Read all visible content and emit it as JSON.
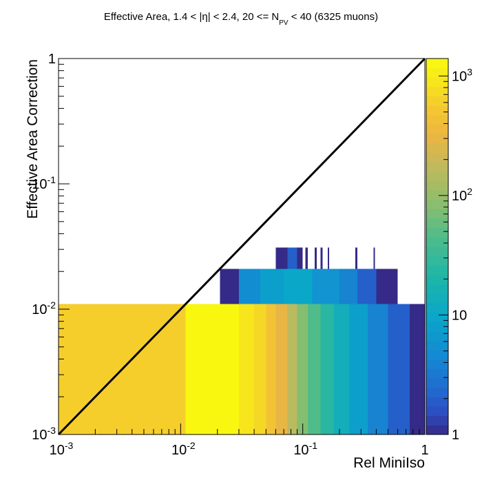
{
  "chart_data": {
    "type": "heatmap",
    "title_main": "Effective Area, 1.4 < |η| < 2.4, 20 <= N",
    "title_sub": "PV",
    "title_rest": " < 40 (6325 muons)",
    "xlabel": "Rel MiniIso",
    "ylabel": "Effective Area Correction",
    "xscale": "log",
    "yscale": "log",
    "xlim": [
      0.001,
      1
    ],
    "ylim": [
      0.001,
      1
    ],
    "x_ticks": [
      {
        "base": "10",
        "exp": "-3"
      },
      {
        "base": "10",
        "exp": "-2"
      },
      {
        "base": "10",
        "exp": "-1"
      },
      {
        "base": "1",
        "exp": ""
      }
    ],
    "y_ticks": [
      {
        "base": "10",
        "exp": "-3"
      },
      {
        "base": "10",
        "exp": "-2"
      },
      {
        "base": "10",
        "exp": "-1"
      },
      {
        "base": "1",
        "exp": ""
      }
    ],
    "colorbar": {
      "scale": "log",
      "range": [
        1,
        1400
      ],
      "ticks": [
        {
          "base": "1",
          "exp": ""
        },
        {
          "base": "10",
          "exp": ""
        },
        {
          "base": "10",
          "exp": "2"
        },
        {
          "base": "10",
          "exp": "3"
        }
      ]
    },
    "diagonal_line": {
      "x": [
        0.001,
        1
      ],
      "y": [
        0.001,
        1
      ]
    },
    "cells": [
      {
        "x0": 0.001,
        "x1": 0.011,
        "y0": 0.001,
        "y1": 0.011,
        "count": 600
      },
      {
        "x0": 0.011,
        "x1": 0.03,
        "y0": 0.001,
        "y1": 0.011,
        "count": 1300
      },
      {
        "x0": 0.03,
        "x1": 0.04,
        "y0": 0.001,
        "y1": 0.011,
        "count": 900
      },
      {
        "x0": 0.04,
        "x1": 0.05,
        "y0": 0.001,
        "y1": 0.011,
        "count": 700
      },
      {
        "x0": 0.05,
        "x1": 0.06,
        "y0": 0.001,
        "y1": 0.011,
        "count": 480
      },
      {
        "x0": 0.06,
        "x1": 0.075,
        "y0": 0.001,
        "y1": 0.011,
        "count": 300
      },
      {
        "x0": 0.075,
        "x1": 0.09,
        "y0": 0.001,
        "y1": 0.011,
        "count": 160
      },
      {
        "x0": 0.09,
        "x1": 0.11,
        "y0": 0.001,
        "y1": 0.011,
        "count": 80
      },
      {
        "x0": 0.11,
        "x1": 0.14,
        "y0": 0.001,
        "y1": 0.011,
        "count": 45
      },
      {
        "x0": 0.14,
        "x1": 0.18,
        "y0": 0.001,
        "y1": 0.011,
        "count": 25
      },
      {
        "x0": 0.18,
        "x1": 0.24,
        "y0": 0.001,
        "y1": 0.011,
        "count": 14
      },
      {
        "x0": 0.24,
        "x1": 0.34,
        "y0": 0.001,
        "y1": 0.011,
        "count": 8
      },
      {
        "x0": 0.34,
        "x1": 0.5,
        "y0": 0.001,
        "y1": 0.011,
        "count": 4
      },
      {
        "x0": 0.5,
        "x1": 0.75,
        "y0": 0.001,
        "y1": 0.011,
        "count": 2
      },
      {
        "x0": 0.75,
        "x1": 1.0,
        "y0": 0.001,
        "y1": 0.011,
        "count": 1
      },
      {
        "x0": 0.021,
        "x1": 0.03,
        "y0": 0.011,
        "y1": 0.021,
        "count": 1
      },
      {
        "x0": 0.03,
        "x1": 0.045,
        "y0": 0.011,
        "y1": 0.021,
        "count": 5
      },
      {
        "x0": 0.045,
        "x1": 0.07,
        "y0": 0.011,
        "y1": 0.021,
        "count": 8
      },
      {
        "x0": 0.07,
        "x1": 0.12,
        "y0": 0.011,
        "y1": 0.021,
        "count": 10
      },
      {
        "x0": 0.12,
        "x1": 0.2,
        "y0": 0.011,
        "y1": 0.021,
        "count": 6
      },
      {
        "x0": 0.2,
        "x1": 0.28,
        "y0": 0.011,
        "y1": 0.021,
        "count": 4
      },
      {
        "x0": 0.28,
        "x1": 0.4,
        "y0": 0.011,
        "y1": 0.021,
        "count": 2
      },
      {
        "x0": 0.4,
        "x1": 0.6,
        "y0": 0.011,
        "y1": 0.021,
        "count": 1
      },
      {
        "x0": 0.06,
        "x1": 0.075,
        "y0": 0.021,
        "y1": 0.031,
        "count": 1
      },
      {
        "x0": 0.075,
        "x1": 0.09,
        "y0": 0.021,
        "y1": 0.031,
        "count": 2
      },
      {
        "x0": 0.09,
        "x1": 0.1,
        "y0": 0.021,
        "y1": 0.031,
        "count": 1
      },
      {
        "x0": 0.105,
        "x1": 0.11,
        "y0": 0.021,
        "y1": 0.031,
        "count": 1
      },
      {
        "x0": 0.125,
        "x1": 0.13,
        "y0": 0.021,
        "y1": 0.031,
        "count": 1
      },
      {
        "x0": 0.14,
        "x1": 0.145,
        "y0": 0.021,
        "y1": 0.031,
        "count": 1
      },
      {
        "x0": 0.16,
        "x1": 0.165,
        "y0": 0.021,
        "y1": 0.031,
        "count": 1
      },
      {
        "x0": 0.27,
        "x1": 0.28,
        "y0": 0.021,
        "y1": 0.031,
        "count": 1
      },
      {
        "x0": 0.38,
        "x1": 0.39,
        "y0": 0.021,
        "y1": 0.031,
        "count": 1
      }
    ]
  }
}
